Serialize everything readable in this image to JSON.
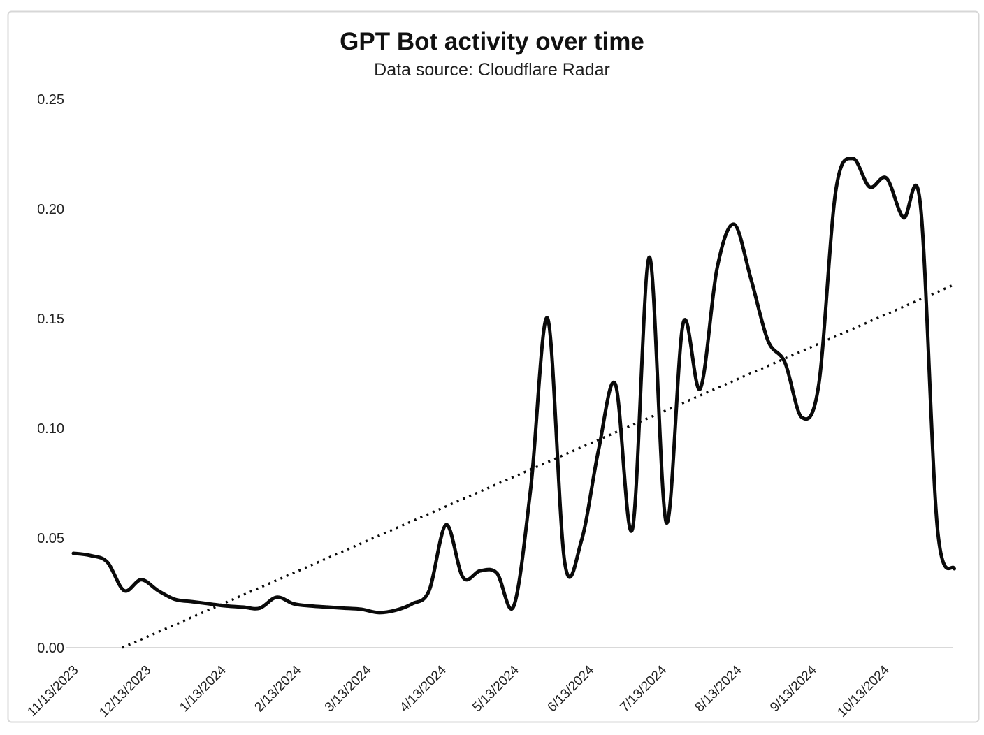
{
  "chart": {
    "title": "GPT Bot activity over time",
    "subtitle": "Data source: Cloudflare Radar"
  },
  "chart_data": {
    "type": "line",
    "title": "GPT Bot activity over time",
    "subtitle": "Data source: Cloudflare Radar",
    "x": [
      "11/13/2023",
      "11/20/2023",
      "11/27/2023",
      "12/4/2023",
      "12/11/2023",
      "12/18/2023",
      "12/25/2023",
      "1/1/2024",
      "1/8/2024",
      "1/15/2024",
      "1/22/2024",
      "1/29/2024",
      "2/5/2024",
      "2/12/2024",
      "2/19/2024",
      "2/26/2024",
      "3/4/2024",
      "3/11/2024",
      "3/18/2024",
      "3/25/2024",
      "4/1/2024",
      "4/8/2024",
      "4/15/2024",
      "4/22/2024",
      "4/29/2024",
      "5/6/2024",
      "5/13/2024",
      "5/20/2024",
      "5/27/2024",
      "6/3/2024",
      "6/10/2024",
      "6/17/2024",
      "6/24/2024",
      "7/1/2024",
      "7/8/2024",
      "7/15/2024",
      "7/22/2024",
      "7/29/2024",
      "8/5/2024",
      "8/12/2024",
      "8/19/2024",
      "8/26/2024",
      "9/2/2024",
      "9/9/2024",
      "9/16/2024",
      "9/23/2024",
      "9/30/2024",
      "10/7/2024",
      "10/14/2024",
      "10/21/2024",
      "10/28/2024",
      "11/4/2024",
      "11/11/2024"
    ],
    "series": [
      {
        "name": "activity",
        "style": "solid",
        "values": [
          0.043,
          0.042,
          0.039,
          0.026,
          0.031,
          0.026,
          0.022,
          0.021,
          0.02,
          0.019,
          0.0185,
          0.018,
          0.023,
          0.02,
          0.019,
          0.0185,
          0.018,
          0.0175,
          0.016,
          0.017,
          0.02,
          0.026,
          0.056,
          0.032,
          0.035,
          0.034,
          0.019,
          0.073,
          0.15,
          0.039,
          0.049,
          0.09,
          0.12,
          0.054,
          0.178,
          0.057,
          0.148,
          0.118,
          0.173,
          0.193,
          0.168,
          0.14,
          0.13,
          0.105,
          0.12,
          0.208,
          0.223,
          0.21,
          0.214,
          0.196,
          0.202,
          0.055,
          0.036
        ]
      },
      {
        "name": "trend",
        "style": "dotted",
        "endpoints": {
          "start_week_index": 2.885,
          "start_value": 0.0,
          "end_week_index": 52,
          "end_value": 0.1655
        }
      }
    ],
    "y_ticks": [
      {
        "value": 0.0,
        "label": "0.00"
      },
      {
        "value": 0.05,
        "label": "0.05"
      },
      {
        "value": 0.1,
        "label": "0.10"
      },
      {
        "value": 0.15,
        "label": "0.15"
      },
      {
        "value": 0.2,
        "label": "0.20"
      },
      {
        "value": 0.25,
        "label": "0.25"
      }
    ],
    "x_ticks": [
      {
        "label": "11/13/2023",
        "week_index": 0
      },
      {
        "label": "12/13/2023",
        "week_index": 4.286
      },
      {
        "label": "1/13/2024",
        "week_index": 8.714
      },
      {
        "label": "2/13/2024",
        "week_index": 13.143
      },
      {
        "label": "3/13/2024",
        "week_index": 17.286
      },
      {
        "label": "4/13/2024",
        "week_index": 21.714
      },
      {
        "label": "5/13/2024",
        "week_index": 26.0
      },
      {
        "label": "6/13/2024",
        "week_index": 30.429
      },
      {
        "label": "7/13/2024",
        "week_index": 34.714
      },
      {
        "label": "8/13/2024",
        "week_index": 39.143
      },
      {
        "label": "9/13/2024",
        "week_index": 43.571
      },
      {
        "label": "10/13/2024",
        "week_index": 47.857
      }
    ],
    "ylim": [
      0,
      0.25
    ],
    "grid": false,
    "legend": false,
    "colors": {
      "line": "#0a0a0a",
      "trend": "#0a0a0a",
      "axis": "#d9d9d9",
      "border": "#d7d7d7",
      "text": "#1f1f1f",
      "background": "#ffffff"
    }
  }
}
